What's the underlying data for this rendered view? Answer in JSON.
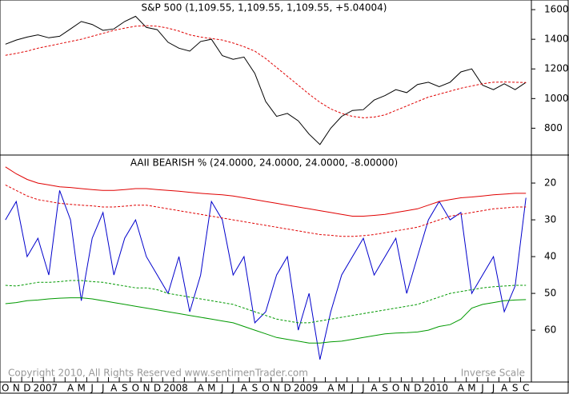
{
  "chart_data": [
    {
      "type": "line",
      "title": "S&P 500 (1,109.55, 1,109.55, 1,109.55, +5.04004)",
      "ylim": [
        619,
        1665
      ],
      "yticks": [
        800,
        1000,
        1200,
        1400,
        1600
      ],
      "series": [
        {
          "color": "#000000",
          "style": "solid",
          "values": [
            1367,
            1395,
            1415,
            1430,
            1410,
            1420,
            1470,
            1520,
            1500,
            1460,
            1470,
            1520,
            1555,
            1480,
            1465,
            1380,
            1340,
            1320,
            1385,
            1400,
            1290,
            1265,
            1280,
            1170,
            980,
            880,
            900,
            850,
            760,
            690,
            800,
            880,
            920,
            925,
            990,
            1020,
            1060,
            1040,
            1095,
            1110,
            1080,
            1110,
            1180,
            1200,
            1090,
            1060,
            1100,
            1060,
            1109
          ]
        },
        {
          "color": "#e00000",
          "style": "dashed",
          "values": [
            1292,
            1305,
            1320,
            1340,
            1355,
            1370,
            1385,
            1400,
            1420,
            1440,
            1460,
            1475,
            1488,
            1492,
            1488,
            1475,
            1455,
            1430,
            1415,
            1405,
            1395,
            1375,
            1350,
            1320,
            1270,
            1210,
            1150,
            1090,
            1030,
            975,
            930,
            900,
            880,
            870,
            875,
            890,
            920,
            950,
            980,
            1010,
            1030,
            1050,
            1070,
            1085,
            1100,
            1110,
            1112,
            1110,
            1108
          ]
        }
      ]
    },
    {
      "type": "line",
      "title": "AAII BEARISH % (24.0000, 24.0000, 24.0000, -8.00000)",
      "note": "Inverse Scale",
      "copyright": "Copyright 2010, All Rights Reserved  www.sentimenTrader.com",
      "inverse": true,
      "ylim": [
        12.6,
        74.1
      ],
      "yticks": [
        20,
        30,
        40,
        50,
        60
      ],
      "categories": [
        "O",
        "N",
        "D",
        "2007",
        null,
        null,
        "A",
        "M",
        "J",
        "J",
        "A",
        "S",
        "O",
        "N",
        "D",
        "2008",
        null,
        null,
        "A",
        "M",
        "J",
        "J",
        "A",
        "S",
        "O",
        "N",
        "D",
        "2009",
        null,
        null,
        "A",
        "M",
        "J",
        "J",
        "A",
        "S",
        "O",
        "N",
        "D",
        "2010",
        null,
        null,
        "A",
        "M",
        "J",
        "J",
        "A",
        "S",
        "C"
      ],
      "series": [
        {
          "color": "#0000cc",
          "style": "solid",
          "values": [
            30,
            25,
            40,
            35,
            45,
            22,
            30,
            52,
            35,
            28,
            45,
            35,
            30,
            40,
            45,
            50,
            40,
            55,
            45,
            25,
            30,
            45,
            40,
            58,
            55,
            45,
            40,
            60,
            50,
            68,
            55,
            45,
            40,
            35,
            45,
            40,
            35,
            50,
            40,
            30,
            25,
            30,
            28,
            50,
            45,
            40,
            55,
            48,
            24
          ]
        },
        {
          "color": "#e00000",
          "style": "solid",
          "values": [
            15.6,
            17.5,
            19,
            20,
            20.5,
            21,
            21.2,
            21.5,
            21.8,
            22,
            22,
            21.8,
            21.5,
            21.5,
            21.8,
            22,
            22.2,
            22.5,
            22.8,
            23,
            23.2,
            23.5,
            24,
            24.5,
            25,
            25.5,
            26,
            26.5,
            27,
            27.5,
            28,
            28.5,
            29,
            29,
            28.8,
            28.5,
            28,
            27.5,
            27,
            26,
            25,
            24.5,
            24,
            23.8,
            23.5,
            23.2,
            23,
            22.8,
            22.8
          ]
        },
        {
          "color": "#e00000",
          "style": "dashed",
          "values": [
            20.5,
            22,
            23.5,
            24.5,
            25,
            25.5,
            25.8,
            26,
            26.2,
            26.5,
            26.5,
            26.3,
            26,
            26,
            26.5,
            27,
            27.5,
            28,
            28.5,
            29,
            29.5,
            30,
            30.5,
            31,
            31.5,
            32,
            32.5,
            33,
            33.5,
            34,
            34.2,
            34.5,
            34.5,
            34.3,
            34,
            33.5,
            33,
            32.5,
            32,
            31,
            30,
            29,
            28.5,
            28,
            27.5,
            27,
            26.8,
            26.5,
            26.5
          ]
        },
        {
          "color": "#009900",
          "style": "dashed",
          "values": [
            47.8,
            48,
            47.5,
            47,
            47,
            46.8,
            46.5,
            46.5,
            46.8,
            47,
            47.5,
            48,
            48.5,
            48.5,
            49,
            50,
            50.5,
            51,
            51.5,
            52,
            52.5,
            53,
            54,
            55,
            56,
            57,
            57.5,
            58,
            58,
            57.5,
            57,
            56.5,
            56,
            55.5,
            55,
            54.5,
            54,
            53.5,
            53,
            52,
            51,
            50,
            49.5,
            49,
            48.5,
            48.2,
            48,
            47.8,
            47.8
          ]
        },
        {
          "color": "#009900",
          "style": "solid",
          "values": [
            52.8,
            52.5,
            52,
            51.8,
            51.5,
            51.3,
            51.2,
            51.2,
            51.5,
            52,
            52.5,
            53,
            53.5,
            54,
            54.5,
            55,
            55.5,
            56,
            56.5,
            57,
            57.5,
            58,
            59,
            60,
            61,
            62,
            62.5,
            63,
            63.5,
            63.5,
            63.2,
            63,
            62.5,
            62,
            61.5,
            61,
            60.8,
            60.7,
            60.5,
            60,
            59,
            58.5,
            57,
            54,
            53,
            52.5,
            52,
            51.8,
            51.7
          ]
        }
      ]
    }
  ]
}
